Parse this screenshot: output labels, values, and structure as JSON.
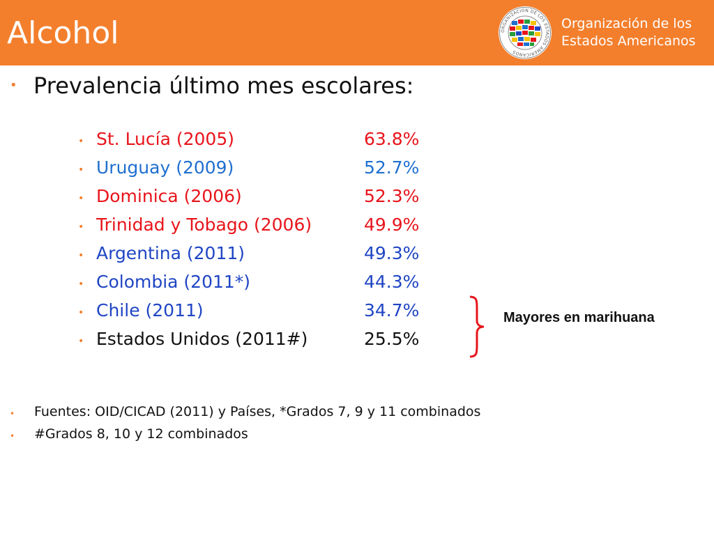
{
  "header": {
    "title": "Alcohol",
    "org_line1": "Organización de los",
    "org_line2": "Estados Americanos",
    "seal_text": "ORGANIZACION DE LOS ESTADOS AMERICANOS",
    "color": "#f37f2d"
  },
  "main_bullet": "Prevalencia último mes escolares:",
  "items": [
    {
      "country": "St. Lucía (2005)",
      "value": "63.8%",
      "color": "#e8141b"
    },
    {
      "country": "Uruguay (2009)",
      "value": "52.7%",
      "color": "#1f6fd0"
    },
    {
      "country": "Dominica (2006)",
      "value": "52.3%",
      "color": "#e8141b"
    },
    {
      "country": "Trinidad y Tobago (2006)",
      "value": "49.9%",
      "color": "#e8141b"
    },
    {
      "country": "Argentina (2011)",
      "value": "49.3%",
      "color": "#1f45c4"
    },
    {
      "country": "Colombia (2011*)",
      "value": "44.3%",
      "color": "#1f45c4"
    },
    {
      "country": "Chile (2011)",
      "value": "34.7%",
      "color": "#1f45c4"
    },
    {
      "country": "Estados Unidos (2011#)",
      "value": "25.5%",
      "color": "#111111"
    }
  ],
  "note": "Mayores en marihuana",
  "sources": [
    "Fuentes: OID/CICAD (2011) y Países, *Grados 7, 9 y 11 combinados",
    "#Grados 8, 10 y 12 combinados"
  ]
}
